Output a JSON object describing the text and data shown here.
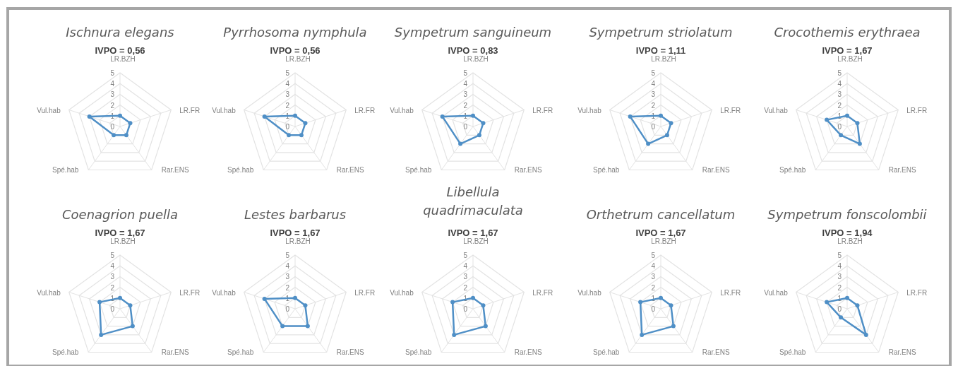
{
  "chart_data": [
    {
      "type": "radar",
      "title": "Ischnura elegans",
      "subtitle": "IVPO = 0,56",
      "categories": [
        "LR.BZH",
        "LR.FR",
        "Rar.ENS",
        "Spé.hab",
        "Vul.hab"
      ],
      "series": [
        {
          "color": "#4f8fc6",
          "values": [
            1,
            1,
            1,
            1,
            3
          ]
        }
      ],
      "ylim": [
        0,
        5
      ],
      "yticks": [
        0,
        1,
        2,
        3,
        4,
        5
      ],
      "grid": true,
      "marker": "circle"
    },
    {
      "type": "radar",
      "title": "Pyrrhosoma nymphula",
      "subtitle": "IVPO = 0,56",
      "categories": [
        "LR.BZH",
        "LR.FR",
        "Rar.ENS",
        "Spé.hab",
        "Vul.hab"
      ],
      "series": [
        {
          "color": "#4f8fc6",
          "values": [
            1,
            1,
            1,
            1,
            3
          ]
        }
      ],
      "ylim": [
        0,
        5
      ],
      "yticks": [
        0,
        1,
        2,
        3,
        4,
        5
      ],
      "grid": true,
      "marker": "circle"
    },
    {
      "type": "radar",
      "title": "Sympetrum sanguineum",
      "subtitle": "IVPO = 0,83",
      "categories": [
        "LR.BZH",
        "LR.FR",
        "Rar.ENS",
        "Spé.hab",
        "Vul.hab"
      ],
      "series": [
        {
          "color": "#4f8fc6",
          "values": [
            1,
            1,
            1,
            2,
            3
          ]
        }
      ],
      "ylim": [
        0,
        5
      ],
      "yticks": [
        0,
        1,
        2,
        3,
        4,
        5
      ],
      "grid": true,
      "marker": "circle"
    },
    {
      "type": "radar",
      "title": "Sympetrum striolatum",
      "subtitle": "IVPO = 1,11",
      "categories": [
        "LR.BZH",
        "LR.FR",
        "Rar.ENS",
        "Spé.hab",
        "Vul.hab"
      ],
      "series": [
        {
          "color": "#4f8fc6",
          "values": [
            1,
            1,
            1,
            2,
            3
          ]
        }
      ],
      "ylim": [
        0,
        5
      ],
      "yticks": [
        0,
        1,
        2,
        3,
        4,
        5
      ],
      "grid": true,
      "marker": "circle"
    },
    {
      "type": "radar",
      "title": "Crocothemis erythraea",
      "subtitle": "IVPO = 1,67",
      "categories": [
        "LR.BZH",
        "LR.FR",
        "Rar.ENS",
        "Spé.hab",
        "Vul.hab"
      ],
      "series": [
        {
          "color": "#4f8fc6",
          "values": [
            1,
            1,
            2,
            1,
            2
          ]
        }
      ],
      "ylim": [
        0,
        5
      ],
      "yticks": [
        0,
        1,
        2,
        3,
        4,
        5
      ],
      "grid": true,
      "marker": "circle"
    },
    {
      "type": "radar",
      "title": "Coenagrion puella",
      "subtitle": "IVPO = 1,67",
      "categories": [
        "LR.BZH",
        "LR.FR",
        "Rar.ENS",
        "Spé.hab",
        "Vul.hab"
      ],
      "series": [
        {
          "color": "#4f8fc6",
          "values": [
            1,
            1,
            2,
            3,
            2
          ]
        }
      ],
      "ylim": [
        0,
        5
      ],
      "yticks": [
        0,
        1,
        2,
        3,
        4,
        5
      ],
      "grid": true,
      "marker": "circle"
    },
    {
      "type": "radar",
      "title": "Lestes barbarus",
      "subtitle": "IVPO = 1,67",
      "categories": [
        "LR.BZH",
        "LR.FR",
        "Rar.ENS",
        "Spé.hab",
        "Vul.hab"
      ],
      "series": [
        {
          "color": "#4f8fc6",
          "values": [
            1,
            1,
            2,
            2,
            3
          ]
        }
      ],
      "ylim": [
        0,
        5
      ],
      "yticks": [
        0,
        1,
        2,
        3,
        4,
        5
      ],
      "grid": true,
      "marker": "circle"
    },
    {
      "type": "radar",
      "title": "Libellula quadrimaculata",
      "subtitle": "IVPO = 1,67",
      "categories": [
        "LR.BZH",
        "LR.FR",
        "Rar.ENS",
        "Spé.hab",
        "Vul.hab"
      ],
      "series": [
        {
          "color": "#4f8fc6",
          "values": [
            1,
            1,
            2,
            3,
            2
          ]
        }
      ],
      "ylim": [
        0,
        5
      ],
      "yticks": [
        0,
        1,
        2,
        3,
        4,
        5
      ],
      "grid": true,
      "marker": "circle"
    },
    {
      "type": "radar",
      "title": "Orthetrum cancellatum",
      "subtitle": "IVPO = 1,67",
      "categories": [
        "LR.BZH",
        "LR.FR",
        "Rar.ENS",
        "Spé.hab",
        "Vul.hab"
      ],
      "series": [
        {
          "color": "#4f8fc6",
          "values": [
            1,
            1,
            2,
            3,
            2
          ]
        }
      ],
      "ylim": [
        0,
        5
      ],
      "yticks": [
        0,
        1,
        2,
        3,
        4,
        5
      ],
      "grid": true,
      "marker": "circle"
    },
    {
      "type": "radar",
      "title": "Sympetrum fonscolombii",
      "subtitle": "IVPO = 1,94",
      "categories": [
        "LR.BZH",
        "LR.FR",
        "Rar.ENS",
        "Spé.hab",
        "Vul.hab"
      ],
      "series": [
        {
          "color": "#4f8fc6",
          "values": [
            1,
            1,
            3,
            1,
            2
          ]
        }
      ],
      "ylim": [
        0,
        5
      ],
      "yticks": [
        0,
        1,
        2,
        3,
        4,
        5
      ],
      "grid": true,
      "marker": "circle"
    }
  ]
}
